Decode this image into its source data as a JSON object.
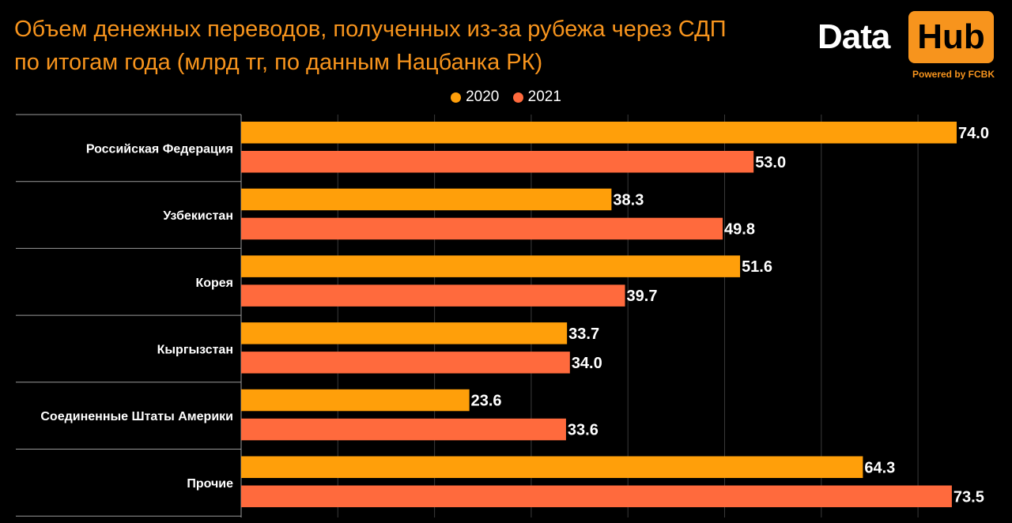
{
  "title_lines": [
    "Объем денежных переводов, полученных из-за рубежа через СДП",
    "по итогам года (млрд тг, по данным Нацбанка РК)"
  ],
  "logo": {
    "word1": "Data",
    "word2": "Hub",
    "tagline": "Powered by FCBK"
  },
  "colors": {
    "series_2020": "#ff9f0a",
    "series_2021": "#ff6a3d",
    "title": "#f7941d",
    "background": "#000000"
  },
  "chart_data": {
    "type": "bar",
    "orientation": "horizontal",
    "title": "Объем денежных переводов, полученных из-за рубежа через СДП по итогам года (млрд тг, по данным Нацбанка РК)",
    "categories": [
      "Российская Федерация",
      "Узбекистан",
      "Корея",
      "Кыргызстан",
      "Соединенные Штаты Америки",
      "Прочие"
    ],
    "series": [
      {
        "name": "2020",
        "values": [
          74.0,
          38.3,
          51.6,
          33.7,
          23.6,
          64.3
        ]
      },
      {
        "name": "2021",
        "values": [
          53.0,
          49.8,
          39.7,
          34.0,
          33.6,
          73.5
        ]
      }
    ],
    "value_labels": [
      [
        "74.0",
        "38.3",
        "51.6",
        "33.7",
        "23.6",
        "64.3"
      ],
      [
        "53.0",
        "49.8",
        "39.7",
        "34.0",
        "33.6",
        "73.5"
      ]
    ],
    "xlim": [
      0,
      78
    ],
    "legend_position": "top-center",
    "grid": true
  }
}
